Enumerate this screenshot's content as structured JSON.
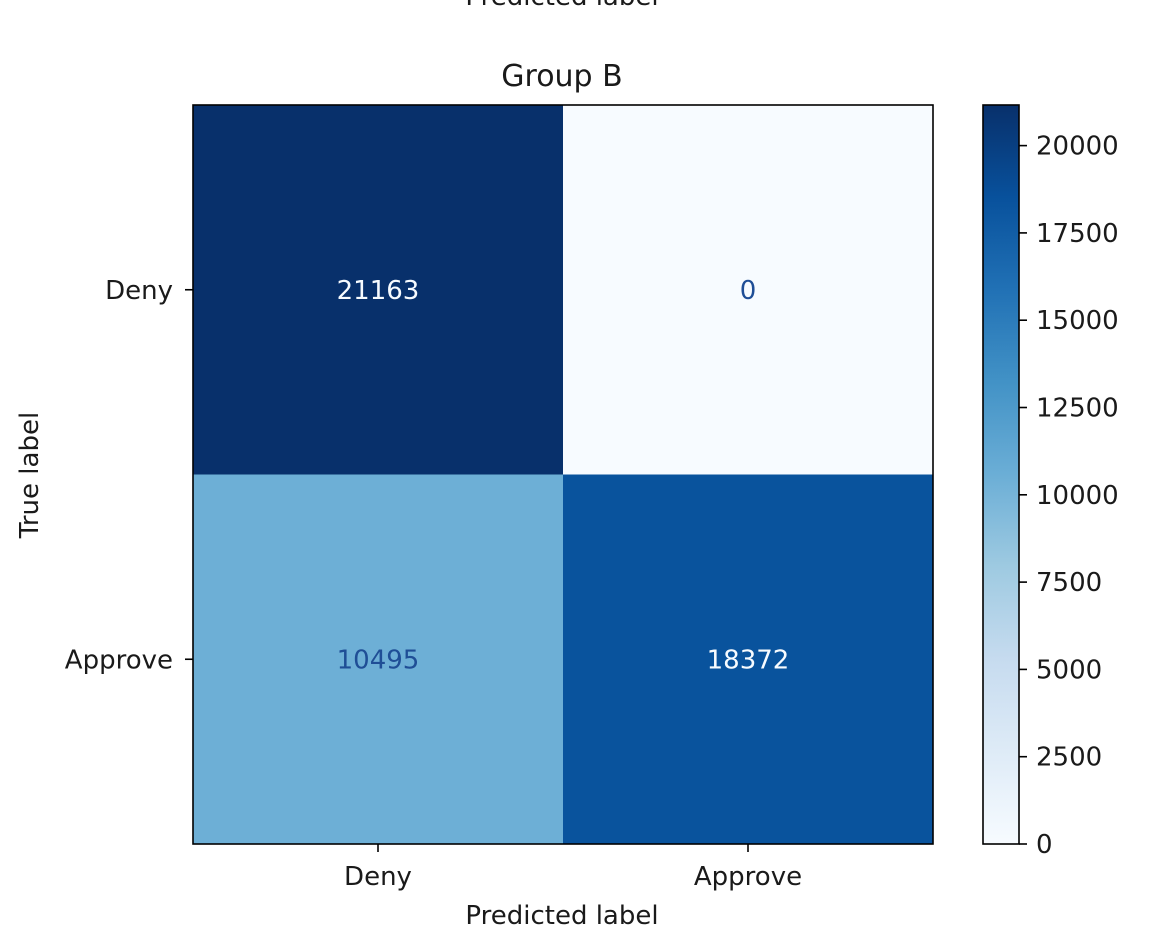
{
  "header": {
    "clipped_label": "Predicted label"
  },
  "chart_data": {
    "type": "heatmap",
    "title": "Group B",
    "xlabel": "Predicted label",
    "ylabel": "True label",
    "x_categories": [
      "Deny",
      "Approve"
    ],
    "y_categories": [
      "Deny",
      "Approve"
    ],
    "matrix": [
      [
        21163,
        0
      ],
      [
        10495,
        18372
      ]
    ],
    "colorbar": {
      "range": [
        0,
        21163
      ],
      "ticks": [
        0,
        2500,
        5000,
        7500,
        10000,
        12500,
        15000,
        17500,
        20000
      ],
      "colormap": "Blues"
    },
    "colors": {
      "high_text": "#f7fbff",
      "low_text": "#1f4e96",
      "frame": "#000000"
    }
  }
}
